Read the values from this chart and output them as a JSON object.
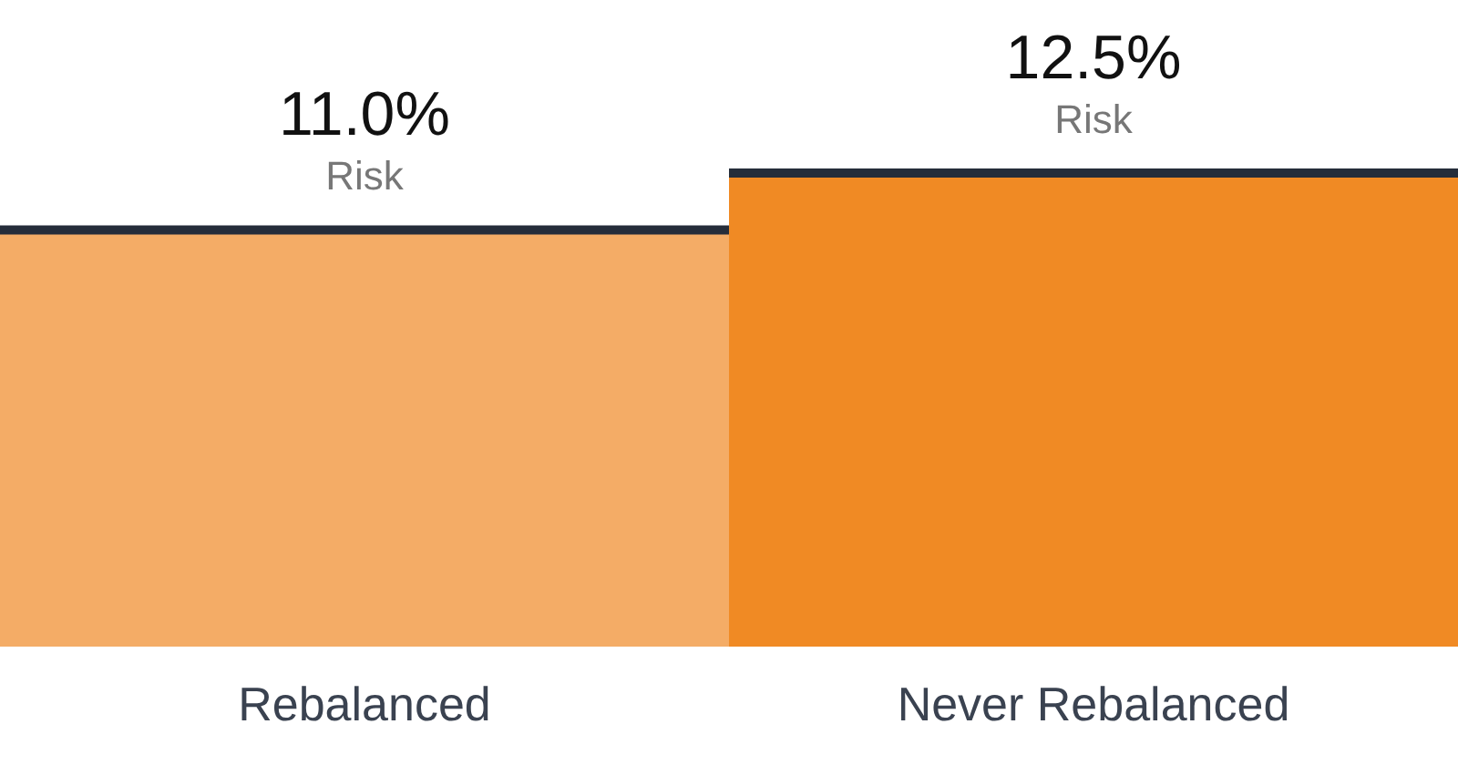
{
  "chart_data": {
    "type": "bar",
    "categories": [
      "Rebalanced",
      "Never Rebalanced"
    ],
    "values": [
      11.0,
      12.5
    ],
    "colors": [
      "#f4ac66",
      "#f08a24"
    ],
    "value_labels": [
      "11.0%",
      "12.5%"
    ],
    "annotations": [
      {
        "text": "Risk",
        "x": "Rebalanced",
        "y": 11.0
      },
      {
        "text": "Risk",
        "x": "Never Rebalanced",
        "y": 12.5
      }
    ],
    "grid": false,
    "legend": false
  }
}
